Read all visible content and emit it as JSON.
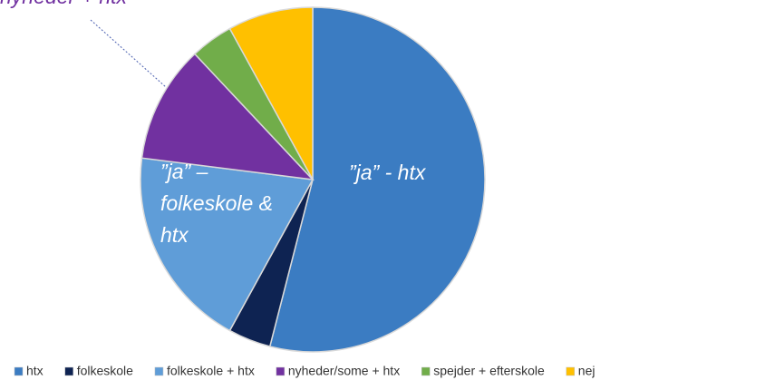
{
  "chart_data": {
    "type": "pie",
    "categories": [
      "htx",
      "folkeskole",
      "folkeskole + htx",
      "nyheder/some + htx",
      "spejder + efterskole",
      "nej"
    ],
    "values": [
      54,
      4,
      19,
      11,
      4,
      8
    ],
    "colors": [
      "#3b7cc2",
      "#0e2352",
      "#5f9dd8",
      "#7131a0",
      "#71ad4a",
      "#ffc000"
    ],
    "annotations": [
      {
        "lines": [
          "”ja” - htx"
        ]
      },
      {
        "lines": [
          "”ja” –",
          "folkeskole &",
          "htx"
        ]
      },
      {
        "lines": [
          "nyheder + htx"
        ]
      }
    ],
    "legend": "bottom"
  }
}
